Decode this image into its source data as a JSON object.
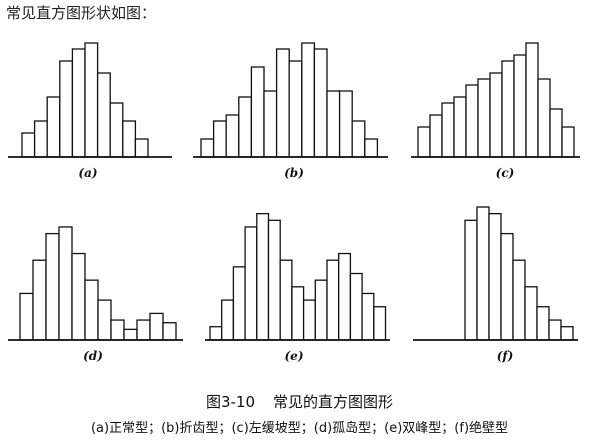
{
  "intro_text": "常见直方图形状如图：",
  "caption": {
    "number": "图3-10",
    "title": "常见的直方图图形"
  },
  "legend_text": "(a)正常型；(b)折齿型；(c)左缓坡型；(d)孤岛型；(e)双峰型；(f)绝壁型",
  "chart_data": [
    {
      "type": "bar",
      "label": "(a)",
      "values": [
        2,
        3,
        5,
        8,
        9,
        9.5,
        7,
        4.5,
        3,
        1.5
      ],
      "ylim": [
        0,
        10
      ]
    },
    {
      "type": "bar",
      "label": "(b)",
      "values": [
        1.5,
        3,
        3.5,
        5,
        7.5,
        5.5,
        9,
        8,
        9.5,
        9,
        5.5,
        5.5,
        3,
        1.5
      ],
      "ylim": [
        0,
        10
      ]
    },
    {
      "type": "bar",
      "label": "(c)",
      "values": [
        2.5,
        3.5,
        4.5,
        5,
        6,
        6.5,
        7,
        8,
        8.5,
        9.5,
        6.5,
        4,
        2.5
      ],
      "ylim": [
        0,
        10
      ]
    },
    {
      "type": "bar",
      "label": "(d)",
      "values": [
        3.5,
        6,
        8,
        8.5,
        6.5,
        4.5,
        3,
        1.5,
        0.8,
        1.5,
        2,
        1.3
      ],
      "ylim": [
        0,
        10
      ]
    },
    {
      "type": "bar",
      "label": "(e)",
      "values": [
        1,
        3,
        5.5,
        8.5,
        9.5,
        9,
        6,
        4,
        3,
        4.5,
        6,
        6.5,
        5,
        3.5,
        2.5
      ],
      "ylim": [
        0,
        10
      ]
    },
    {
      "type": "bar",
      "label": "(f)",
      "values": [
        9,
        10,
        9.5,
        8,
        6,
        4,
        2.5,
        1.5,
        1
      ],
      "ylim": [
        0,
        10
      ]
    }
  ]
}
